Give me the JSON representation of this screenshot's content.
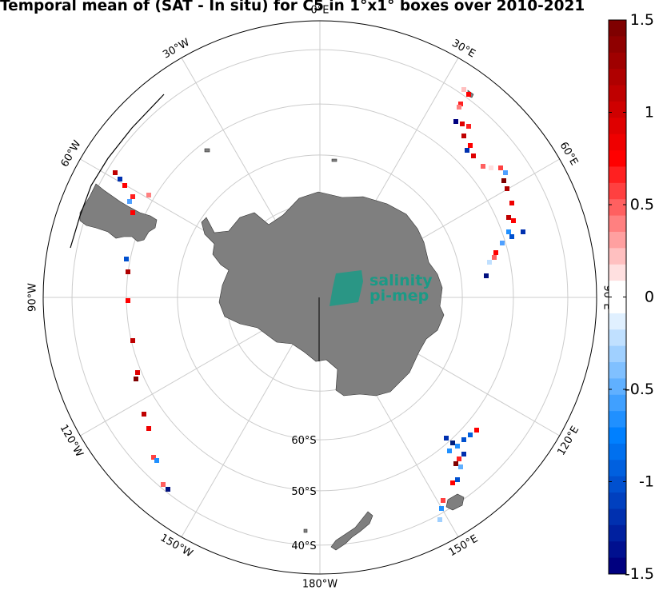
{
  "title": "Temporal mean of (SAT - In situ) for C5 in 1°x1° boxes over 2010-2021",
  "map": {
    "projection": "south polar stereographic",
    "longitude_labels": [
      {
        "lon": 0,
        "text": "0°E"
      },
      {
        "lon": 30,
        "text": "30°E"
      },
      {
        "lon": 60,
        "text": "60°E"
      },
      {
        "lon": 90,
        "text": "90°E"
      },
      {
        "lon": 120,
        "text": "120°E"
      },
      {
        "lon": 150,
        "text": "150°E"
      },
      {
        "lon": 180,
        "text": "180°W"
      },
      {
        "lon": -150,
        "text": "150°W"
      },
      {
        "lon": -120,
        "text": "120°W"
      },
      {
        "lon": -90,
        "text": "90°W"
      },
      {
        "lon": -60,
        "text": "60°W"
      },
      {
        "lon": -30,
        "text": "30°W"
      }
    ],
    "latitude_labels": [
      {
        "lat": -60,
        "text": "60°S"
      },
      {
        "lat": -50,
        "text": "50°S"
      },
      {
        "lat": -40,
        "text": "40°S"
      }
    ],
    "land_color": "#7f7f7f",
    "grid_color": "#cccccc"
  },
  "colorbar": {
    "min": -1.5,
    "max": 1.5,
    "ticks": [
      "1.5",
      "1",
      "0.5",
      "0",
      "-0.5",
      "-1",
      "-1.5"
    ],
    "colors_top_to_bottom": [
      "#7f0000",
      "#8f0000",
      "#9f0000",
      "#af0000",
      "#bf0000",
      "#cf0000",
      "#df0000",
      "#ef0000",
      "#ff0000",
      "#ff2020",
      "#ff4040",
      "#ff6060",
      "#ff8080",
      "#ffa0a0",
      "#ffc0c0",
      "#ffe0e0",
      "#ffffff",
      "#ffffff",
      "#e0f0ff",
      "#c0e0ff",
      "#a0d0ff",
      "#80c0ff",
      "#60b0ff",
      "#40a0ff",
      "#2090ff",
      "#0080ff",
      "#0070ef",
      "#0060df",
      "#0050cf",
      "#0040bf",
      "#0030af",
      "#00209f",
      "#00108f",
      "#00007f"
    ]
  },
  "logo": {
    "line1": "salinity",
    "line2": "pi-mep"
  }
}
